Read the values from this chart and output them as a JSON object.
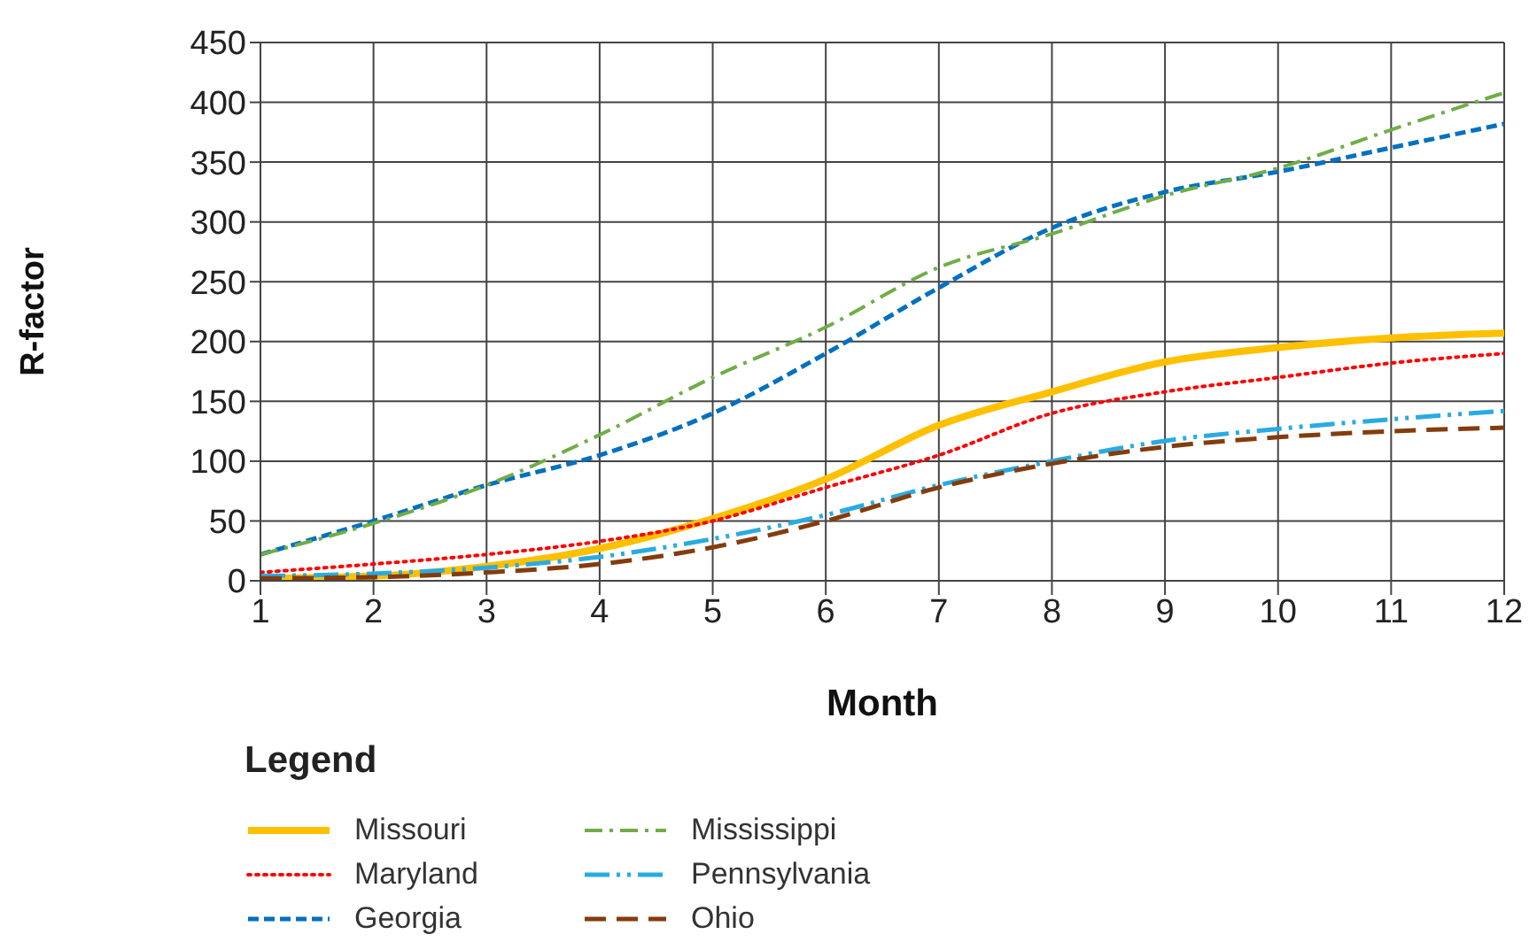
{
  "chart_data": {
    "type": "line",
    "xlabel": "Month",
    "ylabel": "R-factor",
    "legend_title": "Legend",
    "legend": "bottom",
    "grid": true,
    "marker": "none",
    "x": [
      1,
      2,
      3,
      4,
      5,
      6,
      7,
      8,
      9,
      10,
      11,
      12
    ],
    "xlim": [
      1,
      12
    ],
    "xticks": [
      1,
      2,
      3,
      4,
      5,
      6,
      7,
      8,
      9,
      10,
      11,
      12
    ],
    "ylim": [
      0,
      450
    ],
    "yticks": [
      0,
      50,
      100,
      150,
      200,
      250,
      300,
      350,
      400,
      450
    ],
    "series": [
      {
        "name": "Missouri",
        "color": "#ffc000",
        "line_style": "solid",
        "values": [
          2,
          4,
          12,
          27,
          52,
          85,
          130,
          158,
          183,
          195,
          203,
          207
        ]
      },
      {
        "name": "Maryland",
        "color": "#ff0000",
        "line_style": "dotted",
        "values": [
          7,
          14,
          22,
          33,
          50,
          78,
          105,
          140,
          158,
          170,
          182,
          190
        ]
      },
      {
        "name": "Georgia",
        "color": "#0070c0",
        "line_style": "dashed",
        "values": [
          22,
          50,
          80,
          105,
          140,
          190,
          245,
          295,
          325,
          342,
          362,
          382
        ]
      },
      {
        "name": "Mississippi",
        "color": "#70ad47",
        "line_style": "dashdot",
        "values": [
          22,
          48,
          80,
          122,
          170,
          212,
          262,
          290,
          322,
          345,
          377,
          408
        ]
      },
      {
        "name": "Pennsylvania",
        "color": "#29abe2",
        "line_style": "dashdotdot",
        "values": [
          4,
          6,
          11,
          20,
          35,
          55,
          80,
          100,
          117,
          127,
          135,
          142
        ]
      },
      {
        "name": "Ohio",
        "color": "#843c0c",
        "line_style": "longdash",
        "values": [
          2,
          3,
          7,
          14,
          28,
          50,
          78,
          98,
          112,
          120,
          125,
          128
        ]
      }
    ]
  }
}
